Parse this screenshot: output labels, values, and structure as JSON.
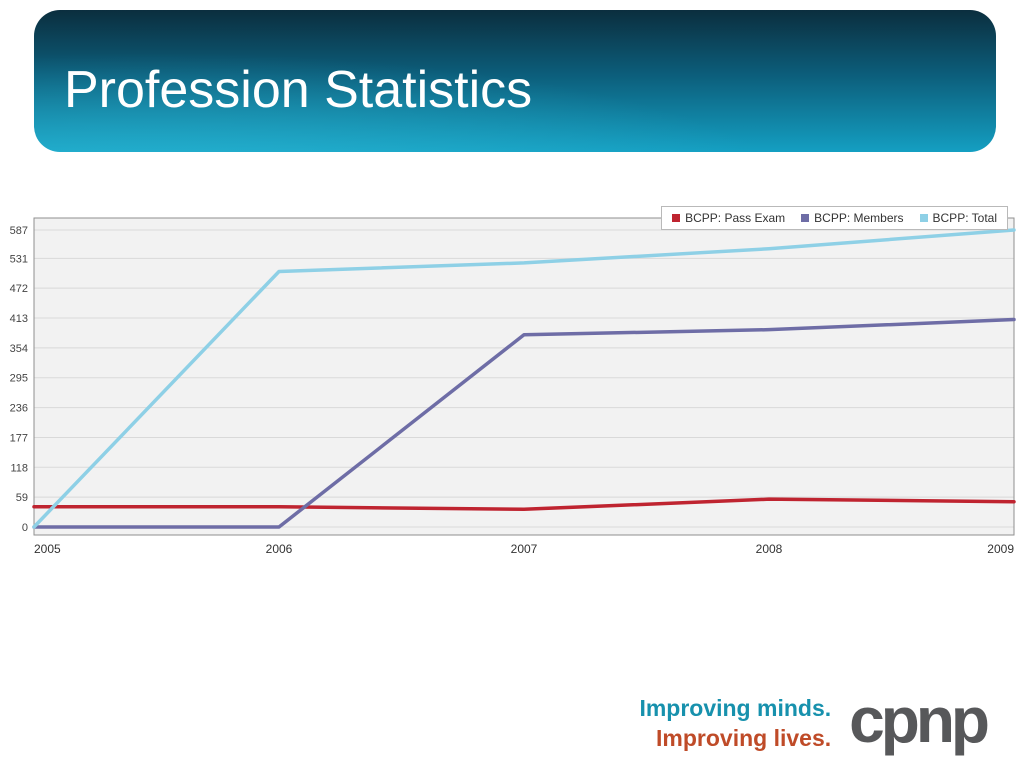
{
  "slide": {
    "title": "Profession Statistics",
    "footer": {
      "tagline1": "Improving minds.",
      "tagline2": "Improving lives.",
      "logo_text": "cpnp"
    }
  },
  "colors": {
    "banner_dark": "#0b2e3e",
    "banner_light": "#149fc2",
    "tagline1": "#1791ad",
    "tagline2": "#bf4b28",
    "logo": "#57585a"
  },
  "chart_data": {
    "type": "line",
    "title": "",
    "xlabel": "",
    "ylabel": "",
    "x": [
      "2005",
      "2006",
      "2007",
      "2008",
      "2009"
    ],
    "y_ticks": [
      0,
      59,
      118,
      177,
      236,
      295,
      354,
      413,
      472,
      531,
      587
    ],
    "ylim": [
      0,
      587
    ],
    "grid": true,
    "legend_position": "top-right",
    "plot_bg": "#f2f2f2",
    "grid_color": "#d9d9d9",
    "border_color": "#8f8f8f",
    "series": [
      {
        "name": "BCPP: Pass Exam",
        "color": "#bf2430",
        "values": [
          40,
          40,
          35,
          55,
          50
        ]
      },
      {
        "name": "BCPP: Members",
        "color": "#6e6da6",
        "values": [
          0,
          0,
          380,
          390,
          410
        ]
      },
      {
        "name": "BCPP: Total",
        "color": "#8ed0e6",
        "values": [
          0,
          505,
          522,
          550,
          587
        ]
      }
    ]
  }
}
